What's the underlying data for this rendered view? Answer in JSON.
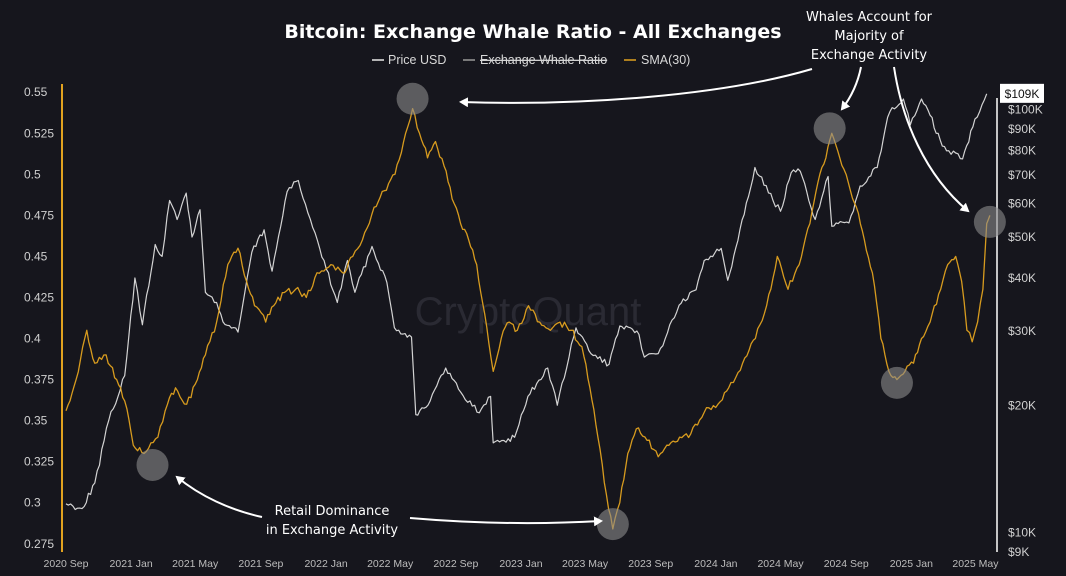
{
  "chart_data": {
    "type": "line",
    "title": "Bitcoin: Exchange Whale Ratio - All Exchanges",
    "legend": [
      {
        "name": "Price USD",
        "color": "#e8e8e8",
        "struck": false
      },
      {
        "name": "Exchange Whale Ratio",
        "color": "#9a9a9a",
        "struck": true
      },
      {
        "name": "SMA(30)",
        "color": "#e2a21f",
        "struck": false
      }
    ],
    "legend_placement": "top-center",
    "watermark": "CryptoQuant",
    "x_axis": {
      "range": [
        "2020-09-01",
        "2025-06-01"
      ],
      "ticks": [
        {
          "label": "2020 Sep",
          "date": "2020-09-01"
        },
        {
          "label": "2021 Jan",
          "date": "2021-01-01"
        },
        {
          "label": "2021 May",
          "date": "2021-05-01"
        },
        {
          "label": "2021 Sep",
          "date": "2021-09-01"
        },
        {
          "label": "2022 Jan",
          "date": "2022-01-01"
        },
        {
          "label": "2022 May",
          "date": "2022-05-01"
        },
        {
          "label": "2022 Sep",
          "date": "2022-09-01"
        },
        {
          "label": "2023 Jan",
          "date": "2023-01-01"
        },
        {
          "label": "2023 May",
          "date": "2023-05-01"
        },
        {
          "label": "2023 Sep",
          "date": "2023-09-01"
        },
        {
          "label": "2024 Jan",
          "date": "2024-01-01"
        },
        {
          "label": "2024 May",
          "date": "2024-05-01"
        },
        {
          "label": "2024 Sep",
          "date": "2024-09-01"
        },
        {
          "label": "2025 Jan",
          "date": "2025-01-01"
        },
        {
          "label": "2025 May",
          "date": "2025-05-01"
        }
      ]
    },
    "y_left": {
      "range": [
        0.27,
        0.555
      ],
      "ticks": [
        "0.55",
        "0.525",
        "0.5",
        "0.475",
        "0.45",
        "0.425",
        "0.4",
        "0.375",
        "0.35",
        "0.325",
        "0.3",
        "0.275"
      ],
      "axis_color": "#e2a21f"
    },
    "y_right": {
      "scale": "log",
      "range": [
        9000,
        115000
      ],
      "ticks": [
        "$100K",
        "$90K",
        "$80K",
        "$70K",
        "$60K",
        "$50K",
        "$40K",
        "$30K",
        "$20K",
        "$10K",
        "$9K"
      ],
      "current_price_label": "$109K",
      "current_price": 109000,
      "axis_color": "#ffffff"
    },
    "grid": false,
    "series": [
      {
        "name": "Price USD",
        "axis": "right",
        "color": "#e8e8e8",
        "points": [
          [
            "2020-09-01",
            11700
          ],
          [
            "2020-10-01",
            11400
          ],
          [
            "2020-10-25",
            13100
          ],
          [
            "2020-11-20",
            18400
          ],
          [
            "2020-12-20",
            23500
          ],
          [
            "2021-01-08",
            40000
          ],
          [
            "2021-01-22",
            31000
          ],
          [
            "2021-02-15",
            48000
          ],
          [
            "2021-02-28",
            45000
          ],
          [
            "2021-03-14",
            61000
          ],
          [
            "2021-03-28",
            55000
          ],
          [
            "2021-04-14",
            63500
          ],
          [
            "2021-04-25",
            50000
          ],
          [
            "2021-05-10",
            58000
          ],
          [
            "2021-05-20",
            37000
          ],
          [
            "2021-06-10",
            35000
          ],
          [
            "2021-06-22",
            31500
          ],
          [
            "2021-07-20",
            29800
          ],
          [
            "2021-08-15",
            46000
          ],
          [
            "2021-09-07",
            52000
          ],
          [
            "2021-09-22",
            41500
          ],
          [
            "2021-10-20",
            64000
          ],
          [
            "2021-11-10",
            68000
          ],
          [
            "2021-11-28",
            57000
          ],
          [
            "2021-12-20",
            47000
          ],
          [
            "2022-01-22",
            35000
          ],
          [
            "2022-02-10",
            44000
          ],
          [
            "2022-02-24",
            37000
          ],
          [
            "2022-03-28",
            47500
          ],
          [
            "2022-04-25",
            39000
          ],
          [
            "2022-05-09",
            30500
          ],
          [
            "2022-06-10",
            29000
          ],
          [
            "2022-06-18",
            19000
          ],
          [
            "2022-07-15",
            20500
          ],
          [
            "2022-08-13",
            24500
          ],
          [
            "2022-09-10",
            21500
          ],
          [
            "2022-10-15",
            19200
          ],
          [
            "2022-11-05",
            21000
          ],
          [
            "2022-11-10",
            16300
          ],
          [
            "2022-12-20",
            16800
          ],
          [
            "2023-01-14",
            21000
          ],
          [
            "2023-02-20",
            24500
          ],
          [
            "2023-03-10",
            20000
          ],
          [
            "2023-04-14",
            30500
          ],
          [
            "2023-05-12",
            26500
          ],
          [
            "2023-06-15",
            25000
          ],
          [
            "2023-07-05",
            30800
          ],
          [
            "2023-08-10",
            29400
          ],
          [
            "2023-08-20",
            26000
          ],
          [
            "2023-09-15",
            26500
          ],
          [
            "2023-10-24",
            34500
          ],
          [
            "2023-11-25",
            37500
          ],
          [
            "2023-12-10",
            44000
          ],
          [
            "2024-01-11",
            47000
          ],
          [
            "2024-01-23",
            39500
          ],
          [
            "2024-02-15",
            52000
          ],
          [
            "2024-03-14",
            73000
          ],
          [
            "2024-04-17",
            61000
          ],
          [
            "2024-05-01",
            57500
          ],
          [
            "2024-05-21",
            71000
          ],
          [
            "2024-06-07",
            71500
          ],
          [
            "2024-07-05",
            55000
          ],
          [
            "2024-07-29",
            69500
          ],
          [
            "2024-08-05",
            53000
          ],
          [
            "2024-09-06",
            54000
          ],
          [
            "2024-09-27",
            66000
          ],
          [
            "2024-10-29",
            73000
          ],
          [
            "2024-11-13",
            90000
          ],
          [
            "2024-11-22",
            99000
          ],
          [
            "2024-12-17",
            106000
          ],
          [
            "2024-12-30",
            92000
          ],
          [
            "2025-01-20",
            106000
          ],
          [
            "2025-02-05",
            97000
          ],
          [
            "2025-02-28",
            82000
          ],
          [
            "2025-03-12",
            80000
          ],
          [
            "2025-04-07",
            76500
          ],
          [
            "2025-04-30",
            95000
          ],
          [
            "2025-05-22",
            109000
          ]
        ]
      },
      {
        "name": "SMA(30)",
        "axis": "left",
        "color": "#e2a21f",
        "points": [
          [
            "2020-09-01",
            0.356
          ],
          [
            "2020-09-20",
            0.375
          ],
          [
            "2020-10-10",
            0.405
          ],
          [
            "2020-10-25",
            0.385
          ],
          [
            "2020-11-15",
            0.39
          ],
          [
            "2020-12-05",
            0.375
          ],
          [
            "2020-12-20",
            0.362
          ],
          [
            "2021-01-05",
            0.335
          ],
          [
            "2021-01-25",
            0.33
          ],
          [
            "2021-02-20",
            0.34
          ],
          [
            "2021-03-10",
            0.36
          ],
          [
            "2021-03-25",
            0.37
          ],
          [
            "2021-04-15",
            0.36
          ],
          [
            "2021-05-05",
            0.375
          ],
          [
            "2021-05-20",
            0.39
          ],
          [
            "2021-06-10",
            0.41
          ],
          [
            "2021-07-01",
            0.445
          ],
          [
            "2021-07-20",
            0.455
          ],
          [
            "2021-08-05",
            0.435
          ],
          [
            "2021-08-20",
            0.42
          ],
          [
            "2021-09-10",
            0.41
          ],
          [
            "2021-09-25",
            0.42
          ],
          [
            "2021-10-15",
            0.428
          ],
          [
            "2021-11-05",
            0.43
          ],
          [
            "2021-11-25",
            0.425
          ],
          [
            "2021-12-15",
            0.44
          ],
          [
            "2022-01-10",
            0.445
          ],
          [
            "2022-02-01",
            0.44
          ],
          [
            "2022-02-20",
            0.45
          ],
          [
            "2022-03-10",
            0.46
          ],
          [
            "2022-04-01",
            0.48
          ],
          [
            "2022-04-20",
            0.49
          ],
          [
            "2022-05-10",
            0.5
          ],
          [
            "2022-05-30",
            0.525
          ],
          [
            "2022-06-12",
            0.54
          ],
          [
            "2022-06-25",
            0.525
          ],
          [
            "2022-07-10",
            0.51
          ],
          [
            "2022-07-25",
            0.52
          ],
          [
            "2022-08-10",
            0.505
          ],
          [
            "2022-08-25",
            0.485
          ],
          [
            "2022-09-10",
            0.47
          ],
          [
            "2022-09-25",
            0.46
          ],
          [
            "2022-10-10",
            0.445
          ],
          [
            "2022-10-25",
            0.415
          ],
          [
            "2022-11-10",
            0.38
          ],
          [
            "2022-11-25",
            0.4
          ],
          [
            "2022-12-10",
            0.41
          ],
          [
            "2022-12-25",
            0.405
          ],
          [
            "2023-01-15",
            0.42
          ],
          [
            "2023-02-05",
            0.41
          ],
          [
            "2023-02-25",
            0.405
          ],
          [
            "2023-03-15",
            0.41
          ],
          [
            "2023-04-05",
            0.405
          ],
          [
            "2023-04-25",
            0.395
          ],
          [
            "2023-05-10",
            0.37
          ],
          [
            "2023-05-25",
            0.34
          ],
          [
            "2023-06-10",
            0.305
          ],
          [
            "2023-06-22",
            0.284
          ],
          [
            "2023-07-05",
            0.3
          ],
          [
            "2023-07-20",
            0.33
          ],
          [
            "2023-08-05",
            0.345
          ],
          [
            "2023-08-25",
            0.338
          ],
          [
            "2023-09-15",
            0.328
          ],
          [
            "2023-10-05",
            0.335
          ],
          [
            "2023-10-25",
            0.34
          ],
          [
            "2023-11-15",
            0.342
          ],
          [
            "2023-12-10",
            0.355
          ],
          [
            "2024-01-05",
            0.36
          ],
          [
            "2024-01-25",
            0.37
          ],
          [
            "2024-02-20",
            0.385
          ],
          [
            "2024-03-15",
            0.4
          ],
          [
            "2024-04-05",
            0.42
          ],
          [
            "2024-04-25",
            0.45
          ],
          [
            "2024-05-15",
            0.43
          ],
          [
            "2024-06-05",
            0.445
          ],
          [
            "2024-06-25",
            0.47
          ],
          [
            "2024-07-10",
            0.495
          ],
          [
            "2024-07-25",
            0.51
          ],
          [
            "2024-08-05",
            0.525
          ],
          [
            "2024-08-20",
            0.51
          ],
          [
            "2024-09-05",
            0.495
          ],
          [
            "2024-09-20",
            0.48
          ],
          [
            "2024-10-05",
            0.46
          ],
          [
            "2024-10-20",
            0.44
          ],
          [
            "2024-11-05",
            0.4
          ],
          [
            "2024-11-20",
            0.38
          ],
          [
            "2024-12-05",
            0.375
          ],
          [
            "2024-12-20",
            0.38
          ],
          [
            "2025-01-05",
            0.385
          ],
          [
            "2025-01-20",
            0.4
          ],
          [
            "2025-02-05",
            0.41
          ],
          [
            "2025-02-25",
            0.43
          ],
          [
            "2025-03-10",
            0.445
          ],
          [
            "2025-03-25",
            0.45
          ],
          [
            "2025-04-05",
            0.435
          ],
          [
            "2025-04-15",
            0.405
          ],
          [
            "2025-04-25",
            0.398
          ],
          [
            "2025-05-05",
            0.41
          ],
          [
            "2025-05-15",
            0.43
          ],
          [
            "2025-05-22",
            0.47
          ],
          [
            "2025-05-28",
            0.475
          ]
        ]
      }
    ],
    "highlights": [
      {
        "date": "2021-02-10",
        "value": 0.323,
        "axis": "left"
      },
      {
        "date": "2022-06-12",
        "value": 0.546,
        "axis": "left"
      },
      {
        "date": "2023-06-22",
        "value": 0.287,
        "axis": "left"
      },
      {
        "date": "2024-08-01",
        "value": 0.528,
        "axis": "left"
      },
      {
        "date": "2024-12-05",
        "value": 0.373,
        "axis": "left"
      },
      {
        "date": "2025-05-28",
        "value": 0.471,
        "axis": "left"
      }
    ],
    "annotations": [
      {
        "lines": [
          "Whales Account for",
          "Majority of",
          "Exchange Activity"
        ]
      },
      {
        "lines": [
          "Retail Dominance",
          "in Exchange Activity"
        ]
      }
    ]
  }
}
